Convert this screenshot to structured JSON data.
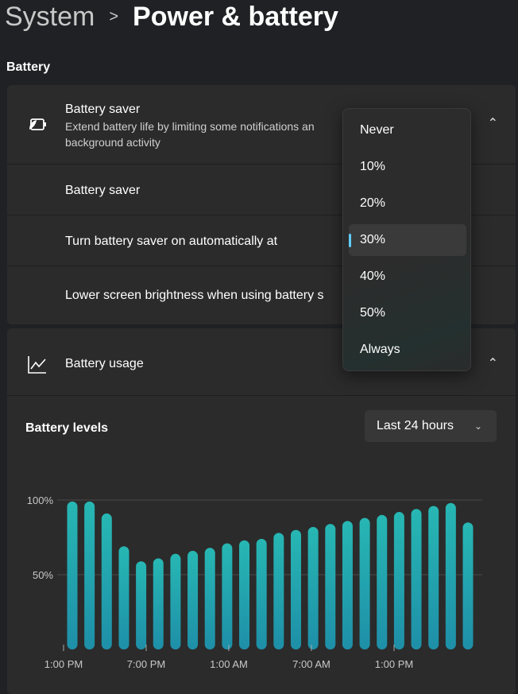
{
  "breadcrumb": {
    "parent": "System",
    "separator": ">",
    "current": "Power & battery"
  },
  "section_title": "Battery",
  "battery_saver": {
    "title": "Battery saver",
    "description_line1": "Extend battery life by limiting some notifications an",
    "description_line2": "background activity",
    "icon": "battery-saver-icon",
    "rows": [
      "Battery saver",
      "Turn battery saver on automatically at",
      "Lower screen brightness when using battery s"
    ]
  },
  "dropdown": {
    "options": [
      "Never",
      "10%",
      "20%",
      "30%",
      "40%",
      "50%",
      "Always"
    ],
    "selected": "30%",
    "accent": "#60cdff"
  },
  "battery_usage": {
    "title": "Battery usage",
    "icon": "chart-line-icon",
    "levels_title": "Battery levels",
    "range_select": "Last 24 hours"
  },
  "chart_data": {
    "type": "bar",
    "title": "Battery levels",
    "ylim": [
      0,
      100
    ],
    "y_ticks": [
      "100%",
      "50%"
    ],
    "x_ticks": [
      "1:00 PM",
      "7:00 PM",
      "1:00 AM",
      "7:00 AM",
      "1:00 PM"
    ],
    "values": [
      99,
      99,
      91,
      69,
      59,
      61,
      64,
      66,
      68,
      71,
      73,
      74,
      78,
      80,
      82,
      84,
      86,
      88,
      90,
      92,
      94,
      96,
      98,
      85
    ],
    "bar_color": "#25b3b6",
    "grid": true
  }
}
